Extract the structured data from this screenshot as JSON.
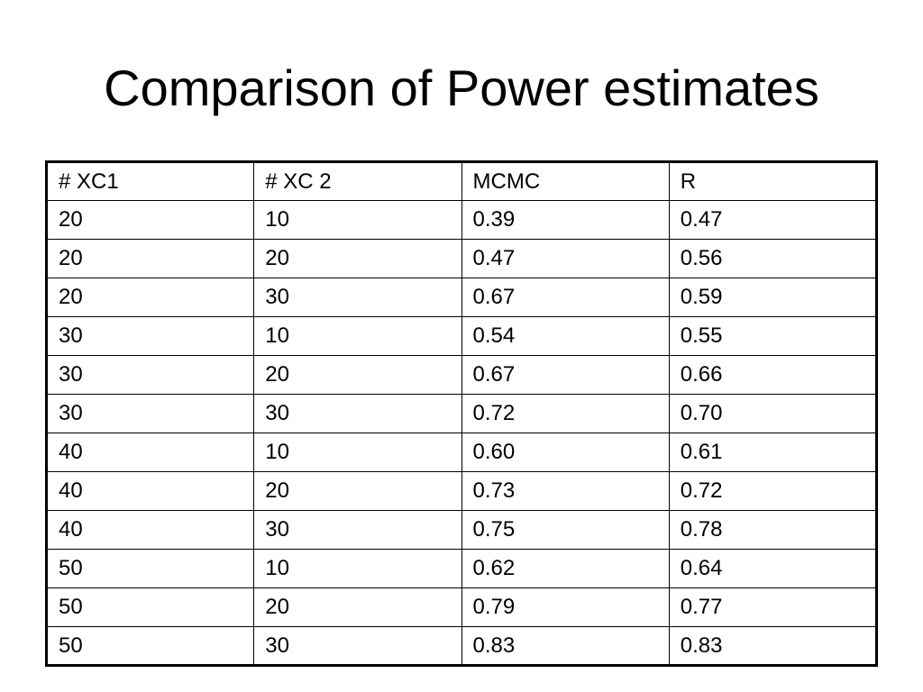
{
  "slide": {
    "title": "Comparison of Power estimates"
  },
  "table": {
    "columns": [
      "# XC1",
      "# XC 2",
      "MCMC",
      "R"
    ],
    "rows": [
      [
        "20",
        "10",
        "0.39",
        "0.47"
      ],
      [
        "20",
        "20",
        "0.47",
        "0.56"
      ],
      [
        "20",
        "30",
        "0.67",
        "0.59"
      ],
      [
        "30",
        "10",
        "0.54",
        "0.55"
      ],
      [
        "30",
        "20",
        "0.67",
        "0.66"
      ],
      [
        "30",
        "30",
        "0.72",
        "0.70"
      ],
      [
        "40",
        "10",
        "0.60",
        "0.61"
      ],
      [
        "40",
        "20",
        "0.73",
        "0.72"
      ],
      [
        "40",
        "30",
        "0.75",
        "0.78"
      ],
      [
        "50",
        "10",
        "0.62",
        "0.64"
      ],
      [
        "50",
        "20",
        "0.79",
        "0.77"
      ],
      [
        "50",
        "30",
        "0.83",
        "0.83"
      ]
    ]
  }
}
